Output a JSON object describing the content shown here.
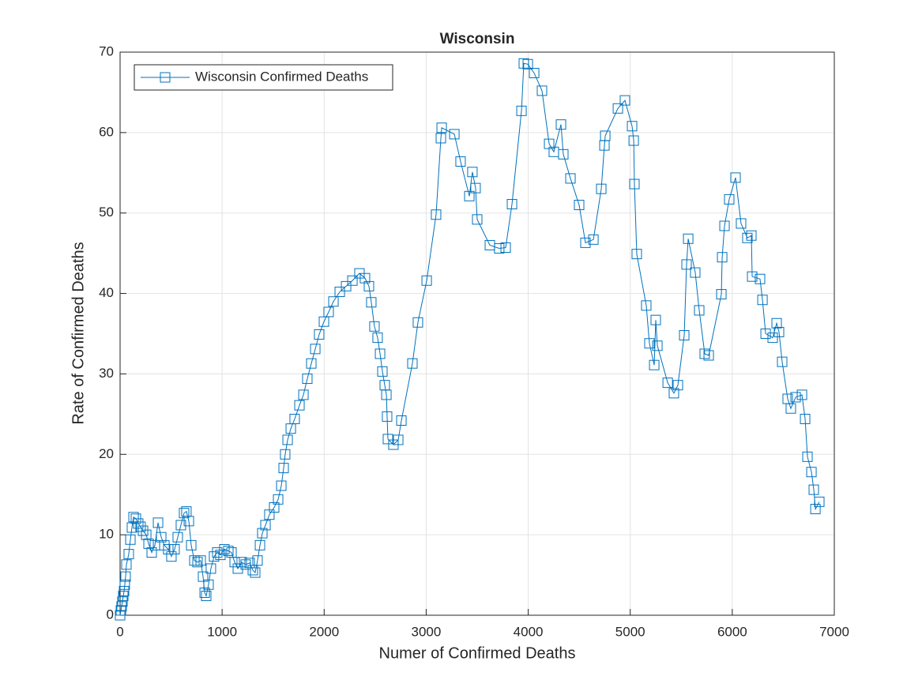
{
  "chart_data": {
    "type": "line",
    "title": "Wisconsin",
    "xlabel": "Numer of Confirmed Deaths",
    "ylabel": "Rate of Confirmed Deaths",
    "x": [
      0,
      8,
      15,
      23,
      31,
      39,
      46,
      54,
      62,
      85,
      101,
      116,
      132,
      155,
      178,
      201,
      225,
      256,
      279,
      310,
      341,
      372,
      403,
      434,
      472,
      503,
      534,
      565,
      596,
      627,
      650,
      674,
      697,
      728,
      759,
      790,
      813,
      829,
      844,
      867,
      890,
      921,
      952,
      983,
      1022,
      1061,
      1092,
      1123,
      1154,
      1192,
      1231,
      1270,
      1301,
      1324,
      1347,
      1371,
      1394,
      1425,
      1463,
      1510,
      1549,
      1580,
      1603,
      1618,
      1642,
      1673,
      1711,
      1758,
      1797,
      1835,
      1874,
      1913,
      1951,
      1998,
      2044,
      2091,
      2153,
      2215,
      2277,
      2346,
      2400,
      2439,
      2462,
      2493,
      2524,
      2548,
      2571,
      2594,
      2610,
      2617,
      2625,
      2679,
      2726,
      2757,
      2865,
      2919,
      3005,
      3097,
      3144,
      3152,
      3276,
      3337,
      3423,
      3453,
      3484,
      3500,
      3624,
      3716,
      3779,
      3841,
      3934,
      3957,
      3996,
      4058,
      4135,
      4205,
      4251,
      4321,
      4344,
      4414,
      4499,
      4561,
      4639,
      4716,
      4747,
      4755,
      4879,
      4948,
      5018,
      5034,
      5041,
      5064,
      5157,
      5188,
      5235,
      5250,
      5266,
      5367,
      5428,
      5467,
      5529,
      5552,
      5568,
      5637,
      5676,
      5730,
      5769,
      5893,
      5901,
      5924,
      5970,
      6032,
      6086,
      6148,
      6187,
      6195,
      6272,
      6296,
      6327,
      6396,
      6435,
      6458,
      6489,
      6543,
      6574,
      6621,
      6683,
      6714,
      6737,
      6776,
      6799,
      6815,
      6853
    ],
    "series": [
      {
        "name": "Wisconsin Confirmed Deaths",
        "color": "#0072bd",
        "marker": "square",
        "values": [
          0,
          0.6,
          1.1,
          1.7,
          2.4,
          3,
          3.8,
          4.8,
          6.3,
          7.6,
          9.4,
          10.9,
          12.2,
          12,
          11.4,
          11,
          10.5,
          10,
          8.9,
          7.8,
          8.7,
          11.5,
          9.7,
          8.7,
          8.2,
          7.3,
          8.2,
          9.7,
          11.2,
          12.7,
          12.9,
          11.7,
          8.7,
          6.8,
          6.6,
          6.8,
          4.8,
          2.8,
          2.4,
          3.8,
          5.8,
          7.3,
          7.8,
          7.5,
          8.2,
          8,
          7.8,
          6.6,
          5.8,
          6.6,
          6.3,
          6.5,
          5.6,
          5.3,
          6.8,
          8.7,
          10.2,
          11.2,
          12.5,
          13.4,
          14.4,
          16.1,
          18.3,
          20,
          21.8,
          23.2,
          24.4,
          26.1,
          27.4,
          29.4,
          31.3,
          33.1,
          34.9,
          36.5,
          37.7,
          39,
          40.2,
          40.9,
          41.6,
          42.5,
          41.9,
          40.9,
          38.9,
          35.9,
          34.5,
          32.5,
          30.3,
          28.6,
          27.4,
          24.7,
          21.9,
          21.2,
          21.8,
          24.2,
          31.3,
          36.4,
          41.6,
          49.8,
          59.3,
          60.6,
          59.8,
          56.4,
          52.1,
          55.1,
          53.1,
          49.2,
          46,
          45.6,
          45.7,
          51.1,
          62.7,
          68.6,
          68.5,
          67.4,
          65.2,
          58.6,
          57.6,
          61,
          57.3,
          54.3,
          51,
          46.3,
          46.7,
          53,
          58.4,
          59.6,
          63,
          64,
          60.8,
          59,
          53.6,
          44.9,
          38.5,
          33.8,
          31.1,
          36.7,
          33.5,
          28.9,
          27.6,
          28.6,
          34.8,
          43.6,
          46.8,
          42.6,
          37.9,
          32.5,
          32.3,
          39.9,
          44.5,
          48.4,
          51.7,
          54.4,
          48.7,
          46.9,
          47.2,
          42.1,
          41.8,
          39.2,
          35,
          34.5,
          36.3,
          35.2,
          31.5,
          26.9,
          25.7,
          27.1,
          27.4,
          24.4,
          19.7,
          17.8,
          15.6,
          13.2,
          14.1
        ]
      }
    ],
    "xlim": [
      0,
      7000
    ],
    "xticks": [
      0,
      1000,
      2000,
      3000,
      4000,
      5000,
      6000,
      7000
    ],
    "ylim": [
      0,
      70
    ],
    "yticks": [
      0,
      10,
      20,
      30,
      40,
      50,
      60,
      70
    ],
    "grid": true,
    "legend": "upper left"
  }
}
